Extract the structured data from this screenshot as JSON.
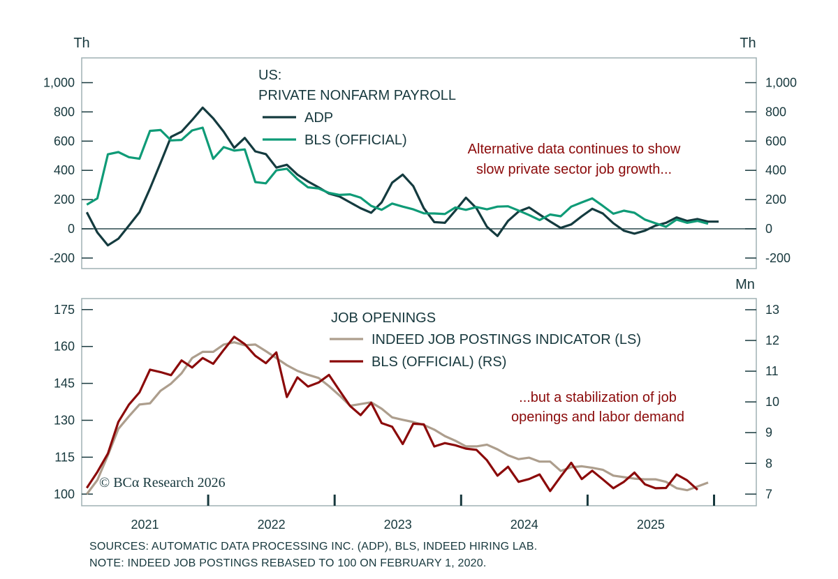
{
  "chart_data": [
    {
      "type": "line",
      "title": "US: PRIVATE NONFARM PAYROLL",
      "title_lines": [
        "US:",
        "PRIVATE NONFARM PAYROLL"
      ],
      "y_unit_left": "Th",
      "y_unit_right": "Th",
      "ylim": [
        -280,
        1120
      ],
      "yticks": [
        -200,
        0,
        200,
        400,
        600,
        800,
        1000
      ],
      "ytick_labels": [
        "-200",
        "0",
        "200",
        "400",
        "600",
        "800",
        "1,000"
      ],
      "x_start": "2021-01",
      "frequency": "monthly",
      "annotation": [
        "Alternative data continues to show",
        "slow private sector job growth..."
      ],
      "legend_placement": "top-center",
      "series": [
        {
          "name": "ADP",
          "color": "#143b3f",
          "values": [
            113,
            -25,
            -113,
            -68,
            22,
            113,
            276,
            451,
            629,
            665,
            744,
            829,
            756,
            665,
            554,
            622,
            530,
            511,
            419,
            438,
            371,
            324,
            284,
            241,
            221,
            181,
            141,
            110,
            181,
            316,
            371,
            292,
            141,
            46,
            41,
            125,
            213,
            141,
            14,
            -49,
            54,
            118,
            146,
            98,
            50,
            6,
            30,
            86,
            137,
            105,
            38,
            -13,
            -33,
            -13,
            22,
            41,
            78,
            54,
            67,
            49,
            49
          ]
        },
        {
          "name": "BLS (OFFICIAL)",
          "color": "#0f9b77",
          "values": [
            165,
            208,
            510,
            525,
            490,
            479,
            670,
            676,
            605,
            608,
            673,
            692,
            479,
            559,
            535,
            543,
            320,
            311,
            400,
            411,
            340,
            284,
            276,
            246,
            232,
            236,
            213,
            157,
            130,
            173,
            152,
            133,
            106,
            105,
            101,
            146,
            130,
            149,
            133,
            152,
            154,
            125,
            94,
            60,
            98,
            86,
            152,
            181,
            208,
            157,
            103,
            124,
            110,
            63,
            38,
            14,
            63,
            41,
            54,
            35
          ]
        }
      ]
    },
    {
      "type": "line",
      "title": "JOB OPENINGS",
      "y_unit_right": "Mn",
      "ylim_left": [
        95,
        179.5
      ],
      "yticks_left": [
        100,
        115,
        130,
        145,
        160,
        175
      ],
      "ylim_right": [
        6.7,
        13.3
      ],
      "yticks_right": [
        7,
        8,
        9,
        10,
        11,
        12,
        13
      ],
      "x_start": "2021-01",
      "frequency": "monthly",
      "xtick_labels": [
        "2021",
        "2022",
        "2023",
        "2024",
        "2025"
      ],
      "annotation": [
        "...but a stabilization of job",
        "openings and labor demand"
      ],
      "legend_placement": "top-center",
      "series": [
        {
          "name": "INDEED JOB POSTINGS INDICATOR (LS)",
          "axis": "left",
          "color": "#ad9e8d",
          "values": [
            100,
            105.7,
            115.8,
            126.5,
            131.6,
            136.4,
            136.9,
            142,
            144.9,
            149.1,
            155.3,
            157.8,
            157.8,
            160.8,
            161.7,
            160.5,
            160.8,
            158.1,
            155.3,
            152.4,
            150.1,
            148.5,
            147.2,
            143.9,
            140.1,
            135.9,
            136.6,
            137.3,
            134.7,
            131.2,
            130.2,
            129.3,
            128.1,
            126.2,
            123.6,
            121.7,
            119.4,
            119.4,
            120.1,
            118.2,
            115.8,
            114.2,
            114.8,
            113.2,
            113.2,
            109.4,
            110.9,
            111.3,
            110.7,
            109.9,
            107.5,
            106.9,
            106.3,
            106,
            106,
            105,
            102.4,
            101.6,
            103.1,
            104.7
          ]
        },
        {
          "name": "BLS (OFFICIAL) (RS)",
          "axis": "right",
          "color": "#8b0a0a",
          "values": [
            7.2,
            7.72,
            8.32,
            9.35,
            9.91,
            10.31,
            11.05,
            10.97,
            10.87,
            11.35,
            11.12,
            11.43,
            11.24,
            11.69,
            12.12,
            11.88,
            11.5,
            11.26,
            11.61,
            10.16,
            10.8,
            10.5,
            10.63,
            10.88,
            10.37,
            9.87,
            9.57,
            9.97,
            9.31,
            9.19,
            8.63,
            9.29,
            9.27,
            8.55,
            8.66,
            8.59,
            8.48,
            8.44,
            8.1,
            7.6,
            7.89,
            7.4,
            7.49,
            7.64,
            7.1,
            7.57,
            8.02,
            7.49,
            7.76,
            7.48,
            7.19,
            7.4,
            7.7,
            7.32,
            7.19,
            7.2,
            7.64,
            7.45,
            7.14
          ]
        }
      ]
    }
  ],
  "watermark": "© BCα Research 2026",
  "footer": {
    "sources": "SOURCES: AUTOMATIC DATA PROCESSING INC. (ADP), BLS, INDEED HIRING LAB.",
    "note": "NOTE: INDEED JOB POSTINGS REBASED TO 100 ON FEBRUARY 1, 2020."
  }
}
